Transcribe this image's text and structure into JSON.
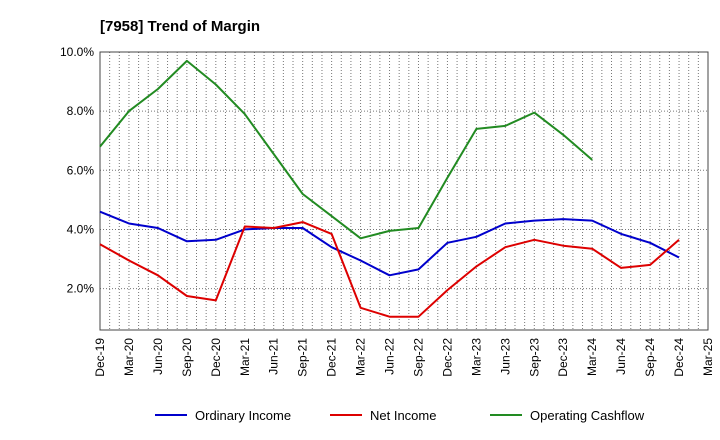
{
  "chart_data": {
    "type": "line",
    "title": "[7958]  Trend of Margin",
    "xlabel": "",
    "ylabel": "",
    "categories": [
      "Dec-19",
      "Mar-20",
      "Jun-20",
      "Sep-20",
      "Dec-20",
      "Mar-21",
      "Jun-21",
      "Sep-21",
      "Dec-21",
      "Mar-22",
      "Jun-22",
      "Sep-22",
      "Dec-22",
      "Mar-23",
      "Jun-23",
      "Sep-23",
      "Dec-23",
      "Mar-24",
      "Jun-24",
      "Sep-24",
      "Dec-24",
      "Mar-25"
    ],
    "ylim": [
      0.6,
      10.0
    ],
    "yticks": [
      2.0,
      4.0,
      6.0,
      8.0,
      10.0
    ],
    "ytick_labels": [
      "2.0%",
      "4.0%",
      "6.0%",
      "8.0%",
      "10.0%"
    ],
    "grid": true,
    "legend_position": "bottom",
    "series": [
      {
        "name": "Ordinary Income",
        "color": "#0000cc",
        "values": [
          4.6,
          4.2,
          4.05,
          3.6,
          3.65,
          4.0,
          4.05,
          4.05,
          3.4,
          2.95,
          2.45,
          2.65,
          3.55,
          3.75,
          4.2,
          4.3,
          4.35,
          4.3,
          3.85,
          3.55,
          3.05,
          null
        ]
      },
      {
        "name": "Net Income",
        "color": "#dd0000",
        "values": [
          3.5,
          2.95,
          2.45,
          1.75,
          1.6,
          4.1,
          4.05,
          4.25,
          3.85,
          1.35,
          1.05,
          1.05,
          1.95,
          2.75,
          3.4,
          3.65,
          3.45,
          3.35,
          2.7,
          2.8,
          3.65,
          null
        ]
      },
      {
        "name": "Operating Cashflow",
        "color": "#228b22",
        "values": [
          6.8,
          8.0,
          8.75,
          9.7,
          8.9,
          7.9,
          6.55,
          5.2,
          4.45,
          3.7,
          3.95,
          4.05,
          5.75,
          7.4,
          7.5,
          7.95,
          7.2,
          6.35,
          null,
          null,
          null,
          null
        ]
      }
    ]
  }
}
